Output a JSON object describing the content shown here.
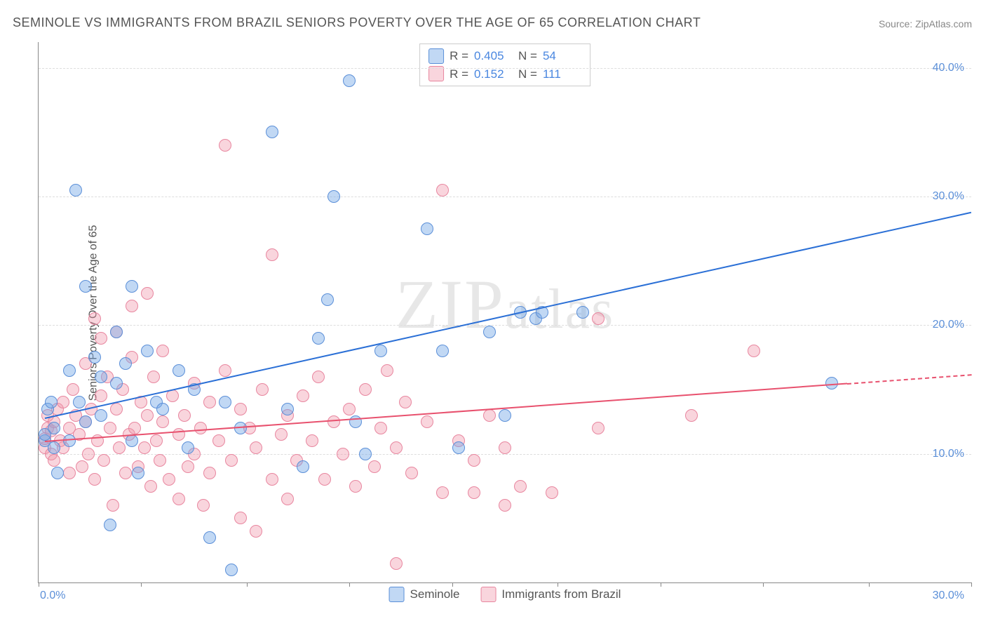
{
  "title": "SEMINOLE VS IMMIGRANTS FROM BRAZIL SENIORS POVERTY OVER THE AGE OF 65 CORRELATION CHART",
  "source": "Source: ZipAtlas.com",
  "ylabel": "Seniors Poverty Over the Age of 65",
  "watermark": "ZIPatlas",
  "chart": {
    "type": "scatter",
    "xlim": [
      0,
      30
    ],
    "ylim": [
      0,
      42
    ],
    "xtick_positions": [
      0,
      3.3,
      6.7,
      10,
      13.3,
      16.7,
      20,
      23.3,
      26.7,
      30
    ],
    "xtick_labels": {
      "min": "0.0%",
      "max": "30.0%"
    },
    "ytick_positions": [
      10,
      20,
      30,
      40
    ],
    "ytick_labels": [
      "10.0%",
      "20.0%",
      "30.0%",
      "40.0%"
    ],
    "grid_color": "#dddddd",
    "axis_color": "#888888",
    "background_color": "#ffffff",
    "series": [
      {
        "name": "Seminole",
        "marker_fill": "rgba(117,169,230,0.45)",
        "marker_stroke": "#5b8fd8",
        "trend_color": "#2a6fd6",
        "r": "0.405",
        "n": "54",
        "trend": {
          "x1": 0.2,
          "y1": 12.8,
          "x2": 30,
          "y2": 28.8
        },
        "points": [
          [
            0.2,
            11.0
          ],
          [
            0.2,
            11.5
          ],
          [
            0.3,
            13.5
          ],
          [
            0.4,
            14.0
          ],
          [
            0.5,
            10.5
          ],
          [
            0.5,
            12.0
          ],
          [
            0.6,
            8.5
          ],
          [
            1.0,
            16.5
          ],
          [
            1.0,
            11.0
          ],
          [
            1.2,
            30.5
          ],
          [
            1.3,
            14.0
          ],
          [
            1.5,
            12.5
          ],
          [
            1.5,
            23.0
          ],
          [
            1.8,
            17.5
          ],
          [
            2.0,
            13.0
          ],
          [
            2.0,
            16.0
          ],
          [
            2.3,
            4.5
          ],
          [
            2.5,
            19.5
          ],
          [
            2.5,
            15.5
          ],
          [
            2.8,
            17.0
          ],
          [
            3.0,
            11.0
          ],
          [
            3.0,
            23.0
          ],
          [
            3.2,
            8.5
          ],
          [
            3.5,
            18.0
          ],
          [
            3.8,
            14.0
          ],
          [
            4.0,
            13.5
          ],
          [
            4.5,
            16.5
          ],
          [
            4.8,
            10.5
          ],
          [
            5.0,
            15.0
          ],
          [
            5.5,
            3.5
          ],
          [
            6.0,
            14.0
          ],
          [
            6.2,
            1.0
          ],
          [
            6.5,
            12.0
          ],
          [
            7.5,
            35.0
          ],
          [
            8.0,
            13.5
          ],
          [
            8.5,
            9.0
          ],
          [
            9.0,
            19.0
          ],
          [
            9.3,
            22.0
          ],
          [
            9.5,
            30.0
          ],
          [
            10.0,
            39.0
          ],
          [
            10.2,
            12.5
          ],
          [
            10.5,
            10.0
          ],
          [
            11.0,
            18.0
          ],
          [
            12.5,
            27.5
          ],
          [
            13.0,
            18.0
          ],
          [
            13.5,
            10.5
          ],
          [
            14.5,
            19.5
          ],
          [
            15.0,
            13.0
          ],
          [
            15.5,
            21.0
          ],
          [
            16.0,
            20.5
          ],
          [
            16.2,
            21.0
          ],
          [
            17.5,
            21.0
          ],
          [
            25.5,
            15.5
          ]
        ]
      },
      {
        "name": "Immigrants from Brazil",
        "marker_fill": "rgba(240,150,170,0.40)",
        "marker_stroke": "#e8869f",
        "trend_color": "#e8516e",
        "r": "0.152",
        "n": "111",
        "trend": {
          "x1": 0.2,
          "y1": 11.0,
          "x2": 26,
          "y2": 15.5
        },
        "trend_dash": {
          "x1": 26,
          "y1": 15.5,
          "x2": 30,
          "y2": 16.2
        },
        "points": [
          [
            0.2,
            10.5
          ],
          [
            0.2,
            11.2
          ],
          [
            0.3,
            12.0
          ],
          [
            0.3,
            13.0
          ],
          [
            0.4,
            10.0
          ],
          [
            0.4,
            11.8
          ],
          [
            0.5,
            9.5
          ],
          [
            0.5,
            12.5
          ],
          [
            0.6,
            13.5
          ],
          [
            0.7,
            11.0
          ],
          [
            0.8,
            14.0
          ],
          [
            0.8,
            10.5
          ],
          [
            1.0,
            12.0
          ],
          [
            1.0,
            8.5
          ],
          [
            1.1,
            15.0
          ],
          [
            1.2,
            13.0
          ],
          [
            1.3,
            11.5
          ],
          [
            1.4,
            9.0
          ],
          [
            1.5,
            12.5
          ],
          [
            1.5,
            17.0
          ],
          [
            1.6,
            10.0
          ],
          [
            1.7,
            13.5
          ],
          [
            1.8,
            8.0
          ],
          [
            1.8,
            20.5
          ],
          [
            1.9,
            11.0
          ],
          [
            2.0,
            14.5
          ],
          [
            2.0,
            19.0
          ],
          [
            2.1,
            9.5
          ],
          [
            2.2,
            16.0
          ],
          [
            2.3,
            12.0
          ],
          [
            2.4,
            6.0
          ],
          [
            2.5,
            13.5
          ],
          [
            2.5,
            19.5
          ],
          [
            2.6,
            10.5
          ],
          [
            2.7,
            15.0
          ],
          [
            2.8,
            8.5
          ],
          [
            2.9,
            11.5
          ],
          [
            3.0,
            17.5
          ],
          [
            3.0,
            21.5
          ],
          [
            3.1,
            12.0
          ],
          [
            3.2,
            9.0
          ],
          [
            3.3,
            14.0
          ],
          [
            3.4,
            10.5
          ],
          [
            3.5,
            13.0
          ],
          [
            3.5,
            22.5
          ],
          [
            3.6,
            7.5
          ],
          [
            3.7,
            16.0
          ],
          [
            3.8,
            11.0
          ],
          [
            3.9,
            9.5
          ],
          [
            4.0,
            12.5
          ],
          [
            4.0,
            18.0
          ],
          [
            4.2,
            8.0
          ],
          [
            4.3,
            14.5
          ],
          [
            4.5,
            11.5
          ],
          [
            4.5,
            6.5
          ],
          [
            4.7,
            13.0
          ],
          [
            4.8,
            9.0
          ],
          [
            5.0,
            15.5
          ],
          [
            5.0,
            10.0
          ],
          [
            5.2,
            12.0
          ],
          [
            5.3,
            6.0
          ],
          [
            5.5,
            14.0
          ],
          [
            5.5,
            8.5
          ],
          [
            5.8,
            11.0
          ],
          [
            6.0,
            16.5
          ],
          [
            6.0,
            34.0
          ],
          [
            6.2,
            9.5
          ],
          [
            6.5,
            13.5
          ],
          [
            6.5,
            5.0
          ],
          [
            6.8,
            12.0
          ],
          [
            7.0,
            10.5
          ],
          [
            7.0,
            4.0
          ],
          [
            7.2,
            15.0
          ],
          [
            7.5,
            8.0
          ],
          [
            7.5,
            25.5
          ],
          [
            7.8,
            11.5
          ],
          [
            8.0,
            13.0
          ],
          [
            8.0,
            6.5
          ],
          [
            8.3,
            9.5
          ],
          [
            8.5,
            14.5
          ],
          [
            8.8,
            11.0
          ],
          [
            9.0,
            16.0
          ],
          [
            9.2,
            8.0
          ],
          [
            9.5,
            12.5
          ],
          [
            9.8,
            10.0
          ],
          [
            10.0,
            13.5
          ],
          [
            10.2,
            7.5
          ],
          [
            10.5,
            15.0
          ],
          [
            10.8,
            9.0
          ],
          [
            11.0,
            12.0
          ],
          [
            11.2,
            16.5
          ],
          [
            11.5,
            1.5
          ],
          [
            11.5,
            10.5
          ],
          [
            11.8,
            14.0
          ],
          [
            12.0,
            8.5
          ],
          [
            12.5,
            12.5
          ],
          [
            13.0,
            7.0
          ],
          [
            13.0,
            30.5
          ],
          [
            13.5,
            11.0
          ],
          [
            14.0,
            9.5
          ],
          [
            14.0,
            7.0
          ],
          [
            14.5,
            13.0
          ],
          [
            15.0,
            6.0
          ],
          [
            15.0,
            10.5
          ],
          [
            15.5,
            7.5
          ],
          [
            16.5,
            7.0
          ],
          [
            18.0,
            12.0
          ],
          [
            18.0,
            20.5
          ],
          [
            21.0,
            13.0
          ],
          [
            23.0,
            18.0
          ]
        ]
      }
    ]
  },
  "legend_bottom": [
    "Seminole",
    "Immigrants from Brazil"
  ]
}
